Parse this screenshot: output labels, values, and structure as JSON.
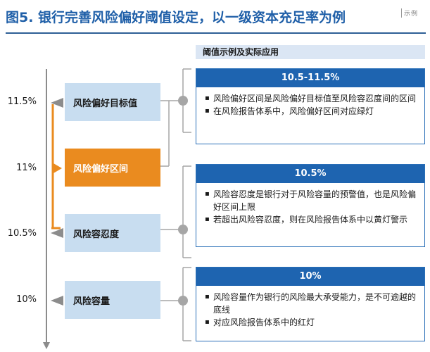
{
  "title": "图5. 银行完善风险偏好阈值设定，以一级资本充足率为例",
  "stamp": "示例",
  "header": "阈值示例及实际应用",
  "axis_labels": [
    "11.5%",
    "11%",
    "10.5%",
    "10%"
  ],
  "levels": [
    {
      "label": "风险偏好目标值"
    },
    {
      "label": "风险偏好区间"
    },
    {
      "label": "风险容忍度"
    },
    {
      "label": "风险容量"
    }
  ],
  "cards": [
    {
      "title": "10.5-11.5%",
      "bullets": [
        "风险偏好区间是风险偏好目标值至风险容忍度间的区间",
        "在风险报告体系中，风险偏好区间对应绿灯"
      ]
    },
    {
      "title": "10.5%",
      "bullets": [
        "风险容忍度是银行对于风险容量的预警值，也是风险偏好区间上限",
        "若超出风险容忍度，则在风险报告体系中以黄灯警示"
      ]
    },
    {
      "title": "10%",
      "bullets": [
        "风险容量作为银行的风险最大承受能力，是不可逾越的底线",
        "对应风险报告体系中的红灯"
      ]
    }
  ],
  "colors": {
    "title_blue": "#1f5fa8",
    "card_blue": "#1e64b0",
    "light_blue_box": "#c8ddf0",
    "orange": "#ea8b1f",
    "gray_line": "#a6a6a6"
  }
}
